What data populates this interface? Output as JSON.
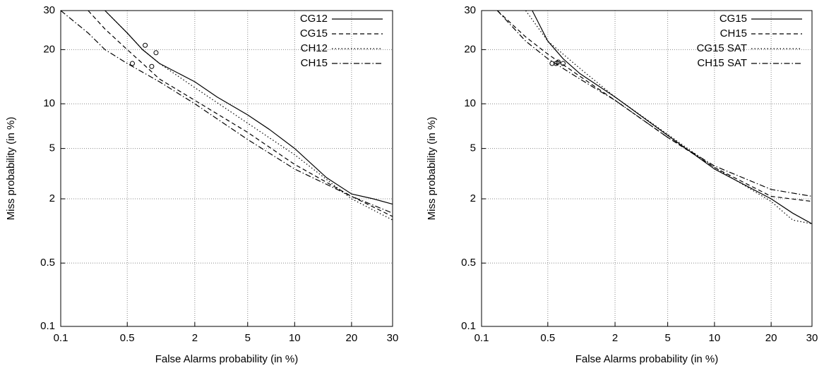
{
  "chart_data": [
    {
      "type": "line",
      "xlabel": "False Alarms probability (in %)",
      "ylabel": "Miss probability (in %)",
      "xscale": "probit",
      "yscale": "probit",
      "xlim": [
        0.1,
        30
      ],
      "ylim": [
        0.1,
        30
      ],
      "xticks": [
        0.1,
        0.5,
        2,
        5,
        10,
        20,
        30
      ],
      "yticks": [
        0.1,
        0.5,
        2,
        5,
        10,
        20,
        30
      ],
      "grid": true,
      "legend": "upper right",
      "series": [
        {
          "name": "CG12",
          "color": "#000000",
          "dash": "solid",
          "x": [
            0.3,
            0.5,
            0.7,
            1,
            2,
            3,
            5,
            7,
            10,
            15,
            20,
            25,
            30
          ],
          "values": [
            30,
            24,
            20,
            17,
            13.5,
            11,
            8.5,
            6.8,
            5,
            3,
            2.2,
            2,
            1.8
          ],
          "marker": {
            "x": 0.74,
            "y": 21
          }
        },
        {
          "name": "CG15",
          "color": "#000000",
          "dash": "dashed",
          "x": [
            0.2,
            0.3,
            0.5,
            0.7,
            1,
            2,
            5,
            10,
            20,
            30
          ],
          "values": [
            30,
            25,
            20,
            17,
            14,
            10.5,
            6.5,
            3.8,
            2.1,
            1.4
          ],
          "marker": {
            "x": 0.85,
            "y": 16.4
          }
        },
        {
          "name": "CH12",
          "color": "#000000",
          "dash": "dotted",
          "x": [
            0.3,
            0.5,
            0.7,
            1,
            2,
            5,
            10,
            20,
            30
          ],
          "values": [
            30,
            24,
            20,
            17,
            12.5,
            7.5,
            4.5,
            2,
            1.3
          ],
          "marker": {
            "x": 0.93,
            "y": 19.3
          }
        },
        {
          "name": "CH15",
          "color": "#000000",
          "dash": "dashdot",
          "x": [
            0.1,
            0.2,
            0.3,
            0.5,
            1,
            2,
            5,
            10,
            20,
            30
          ],
          "values": [
            30,
            24,
            20,
            17,
            13.5,
            10,
            5.8,
            3.5,
            2.1,
            1.5
          ],
          "marker": {
            "x": 0.56,
            "y": 17
          }
        }
      ]
    },
    {
      "type": "line",
      "xlabel": "False Alarms probability (in %)",
      "ylabel": "Miss probability (in %)",
      "xscale": "probit",
      "yscale": "probit",
      "xlim": [
        0.1,
        30
      ],
      "ylim": [
        0.1,
        30
      ],
      "xticks": [
        0.1,
        0.5,
        2,
        5,
        10,
        20,
        30
      ],
      "yticks": [
        0.1,
        0.5,
        2,
        5,
        10,
        20,
        30
      ],
      "grid": true,
      "legend": "upper right",
      "series": [
        {
          "name": "CG15",
          "color": "#000000",
          "dash": "solid",
          "x": [
            0.35,
            0.5,
            0.7,
            1,
            2,
            5,
            10,
            20,
            25,
            30
          ],
          "values": [
            30,
            22,
            18,
            15,
            11,
            6.2,
            3.5,
            2,
            1.5,
            1.2
          ],
          "marker": {
            "x": 0.7,
            "y": 17
          }
        },
        {
          "name": "CH15",
          "color": "#000000",
          "dash": "dashed",
          "x": [
            0.15,
            0.3,
            0.5,
            1,
            2,
            5,
            10,
            20,
            30
          ],
          "values": [
            30,
            23,
            19,
            14.5,
            10.5,
            6,
            3.6,
            2.1,
            1.9
          ],
          "marker": {
            "x": 0.6,
            "y": 17
          }
        },
        {
          "name": "CG15 SAT",
          "color": "#000000",
          "dash": "dotted",
          "x": [
            0.3,
            0.5,
            1,
            2,
            5,
            10,
            20,
            25,
            30
          ],
          "values": [
            30,
            22,
            16,
            11,
            6.3,
            3.6,
            1.9,
            1.3,
            1.2
          ],
          "marker": {
            "x": 0.63,
            "y": 17.3
          }
        },
        {
          "name": "CH15 SAT",
          "color": "#000000",
          "dash": "dashdot",
          "x": [
            0.15,
            0.3,
            0.5,
            1,
            2,
            5,
            10,
            20,
            30
          ],
          "values": [
            30,
            22,
            18,
            14,
            10.5,
            6,
            3.7,
            2.4,
            2.1
          ],
          "marker": {
            "x": 0.55,
            "y": 17
          }
        }
      ]
    }
  ]
}
